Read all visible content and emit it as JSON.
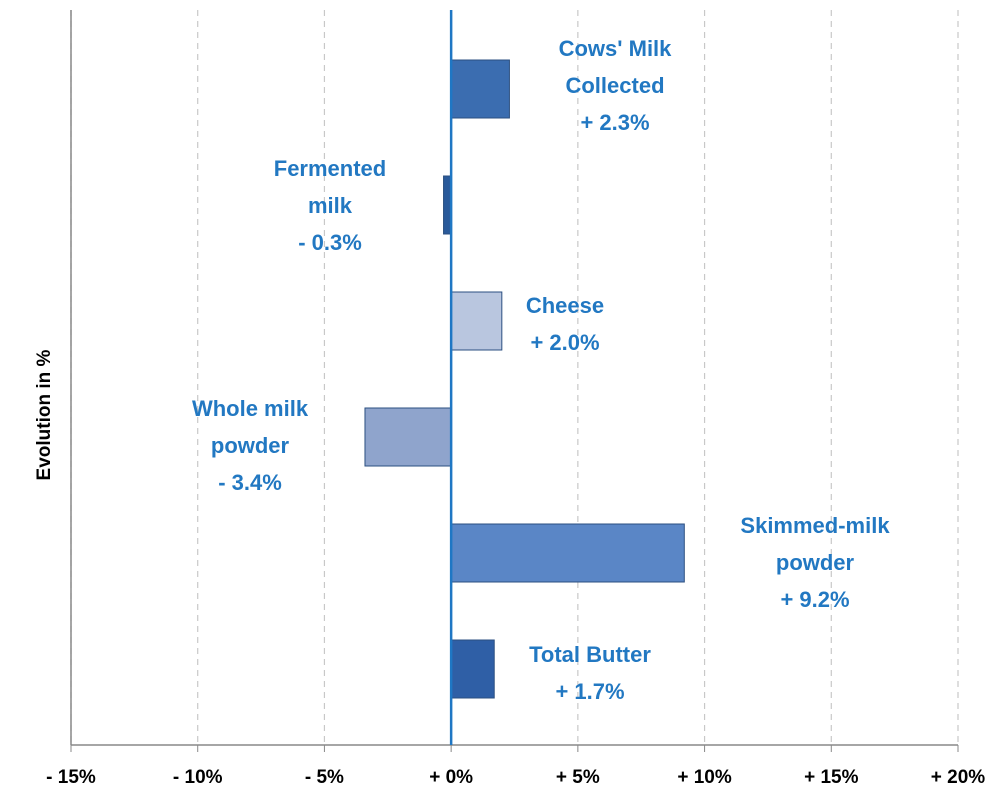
{
  "chart_data": {
    "type": "hbar",
    "y_axis_label": "Evolution in %",
    "categories": [
      "Cows' Milk Collected",
      "Fermented milk",
      "Cheese",
      "Whole milk powder",
      "Skimmed-milk powder",
      "Total Butter"
    ],
    "values": [
      2.3,
      -0.3,
      2.0,
      -3.4,
      9.2,
      1.7
    ],
    "value_labels": [
      "+ 2.3%",
      "- 0.3%",
      "+ 2.0%",
      "- 3.4%",
      "+ 9.2%",
      "+ 1.7%"
    ],
    "colors": [
      "#3b6db0",
      "#2a5a9a",
      "#b9c6df",
      "#8fa4cc",
      "#5a86c6",
      "#2f5fa6"
    ],
    "xlim": [
      -15,
      20
    ],
    "xticks": [
      {
        "value": -15,
        "label": "- 15%"
      },
      {
        "value": -10,
        "label": "- 10%"
      },
      {
        "value": -5,
        "label": "- 5%"
      },
      {
        "value": 0,
        "label": "+ 0%"
      },
      {
        "value": 5,
        "label": "+ 5%"
      },
      {
        "value": 10,
        "label": "+ 10%"
      },
      {
        "value": 15,
        "label": "+ 15%"
      },
      {
        "value": 20,
        "label": "+ 20%"
      }
    ],
    "grid": true
  }
}
